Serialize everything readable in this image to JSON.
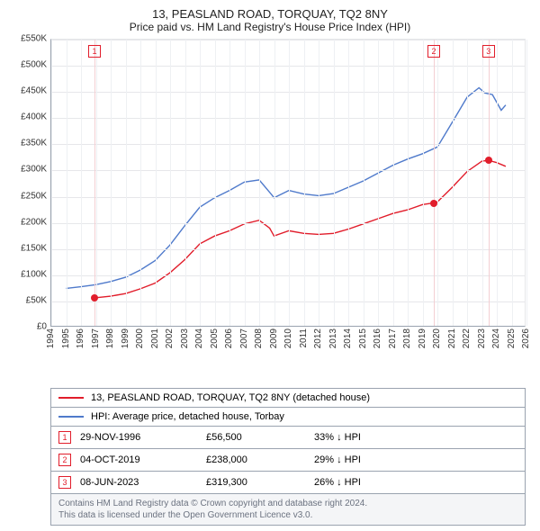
{
  "title": "13, PEASLAND ROAD, TORQUAY, TQ2 8NY",
  "subtitle": "Price paid vs. HM Land Registry's House Price Index (HPI)",
  "chart": {
    "type": "line",
    "background_color": "#ffffff",
    "grid_color": "#e6e7ea",
    "axis_color": "#9aa3af",
    "label_fontsize": 10,
    "title_fontsize": 13,
    "subtitle_fontsize": 12,
    "xlim": [
      1994,
      2026
    ],
    "ylim": [
      0,
      550000
    ],
    "ytick_step": 50000,
    "yticks": [
      "£0",
      "£50K",
      "£100K",
      "£150K",
      "£200K",
      "£250K",
      "£300K",
      "£350K",
      "£400K",
      "£450K",
      "£500K",
      "£550K"
    ],
    "xticks": [
      1994,
      1995,
      1996,
      1997,
      1998,
      1999,
      2000,
      2001,
      2002,
      2003,
      2004,
      2005,
      2006,
      2007,
      2008,
      2009,
      2010,
      2011,
      2012,
      2013,
      2014,
      2015,
      2016,
      2017,
      2018,
      2019,
      2020,
      2021,
      2022,
      2023,
      2024,
      2025,
      2026
    ],
    "series": [
      {
        "name": "13, PEASLAND ROAD, TORQUAY, TQ2 8NY (detached house)",
        "color": "#e11d2b",
        "line_width": 1.4,
        "points": [
          [
            1996.9,
            56500
          ],
          [
            1997,
            57000
          ],
          [
            1998,
            60000
          ],
          [
            1999,
            65000
          ],
          [
            2000,
            74000
          ],
          [
            2001,
            85000
          ],
          [
            2002,
            105000
          ],
          [
            2003,
            130000
          ],
          [
            2004,
            160000
          ],
          [
            2005,
            175000
          ],
          [
            2006,
            185000
          ],
          [
            2007,
            198000
          ],
          [
            2008,
            205000
          ],
          [
            2008.7,
            190000
          ],
          [
            2009,
            175000
          ],
          [
            2010,
            185000
          ],
          [
            2011,
            180000
          ],
          [
            2012,
            178000
          ],
          [
            2013,
            180000
          ],
          [
            2014,
            188000
          ],
          [
            2015,
            198000
          ],
          [
            2016,
            208000
          ],
          [
            2017,
            218000
          ],
          [
            2018,
            225000
          ],
          [
            2019,
            235000
          ],
          [
            2019.76,
            238000
          ],
          [
            2020,
            240000
          ],
          [
            2021,
            268000
          ],
          [
            2022,
            298000
          ],
          [
            2023,
            318000
          ],
          [
            2023.44,
            319300
          ],
          [
            2024,
            315000
          ],
          [
            2024.6,
            308000
          ]
        ]
      },
      {
        "name": "HPI: Average price, detached house, Torbay",
        "color": "#4f7acb",
        "line_width": 1.4,
        "points": [
          [
            1995,
            75000
          ],
          [
            1996,
            78000
          ],
          [
            1997,
            82000
          ],
          [
            1998,
            88000
          ],
          [
            1999,
            96000
          ],
          [
            2000,
            110000
          ],
          [
            2001,
            128000
          ],
          [
            2002,
            158000
          ],
          [
            2003,
            195000
          ],
          [
            2004,
            230000
          ],
          [
            2005,
            248000
          ],
          [
            2006,
            262000
          ],
          [
            2007,
            278000
          ],
          [
            2008,
            282000
          ],
          [
            2008.8,
            255000
          ],
          [
            2009,
            248000
          ],
          [
            2010,
            262000
          ],
          [
            2011,
            255000
          ],
          [
            2012,
            252000
          ],
          [
            2013,
            256000
          ],
          [
            2014,
            268000
          ],
          [
            2015,
            280000
          ],
          [
            2016,
            295000
          ],
          [
            2017,
            310000
          ],
          [
            2018,
            322000
          ],
          [
            2019,
            332000
          ],
          [
            2020,
            345000
          ],
          [
            2021,
            392000
          ],
          [
            2022,
            440000
          ],
          [
            2022.8,
            458000
          ],
          [
            2023.2,
            448000
          ],
          [
            2023.7,
            445000
          ],
          [
            2024.3,
            415000
          ],
          [
            2024.6,
            425000
          ]
        ]
      }
    ],
    "sale_markers": [
      {
        "n": 1,
        "x": 1996.91,
        "y": 56500,
        "color": "#e11d2b",
        "vline_color": "#f3cfd3"
      },
      {
        "n": 2,
        "x": 2019.76,
        "y": 238000,
        "color": "#e11d2b",
        "vline_color": "#f3cfd3"
      },
      {
        "n": 3,
        "x": 2023.44,
        "y": 319300,
        "color": "#e11d2b",
        "vline_color": "#f3cfd3"
      }
    ]
  },
  "legend": {
    "series1": "13, PEASLAND ROAD, TORQUAY, TQ2 8NY (detached house)",
    "series1_color": "#e11d2b",
    "series2": "HPI: Average price, detached house, Torbay",
    "series2_color": "#4f7acb"
  },
  "sales": [
    {
      "n": "1",
      "date": "29-NOV-1996",
      "price": "£56,500",
      "pct": "33% ↓ HPI",
      "chip_color": "#e11d2b"
    },
    {
      "n": "2",
      "date": "04-OCT-2019",
      "price": "£238,000",
      "pct": "29% ↓ HPI",
      "chip_color": "#e11d2b"
    },
    {
      "n": "3",
      "date": "08-JUN-2023",
      "price": "£319,300",
      "pct": "26% ↓ HPI",
      "chip_color": "#e11d2b"
    }
  ],
  "attribution": {
    "line1": "Contains HM Land Registry data © Crown copyright and database right 2024.",
    "line2": "This data is licensed under the Open Government Licence v3.0."
  }
}
